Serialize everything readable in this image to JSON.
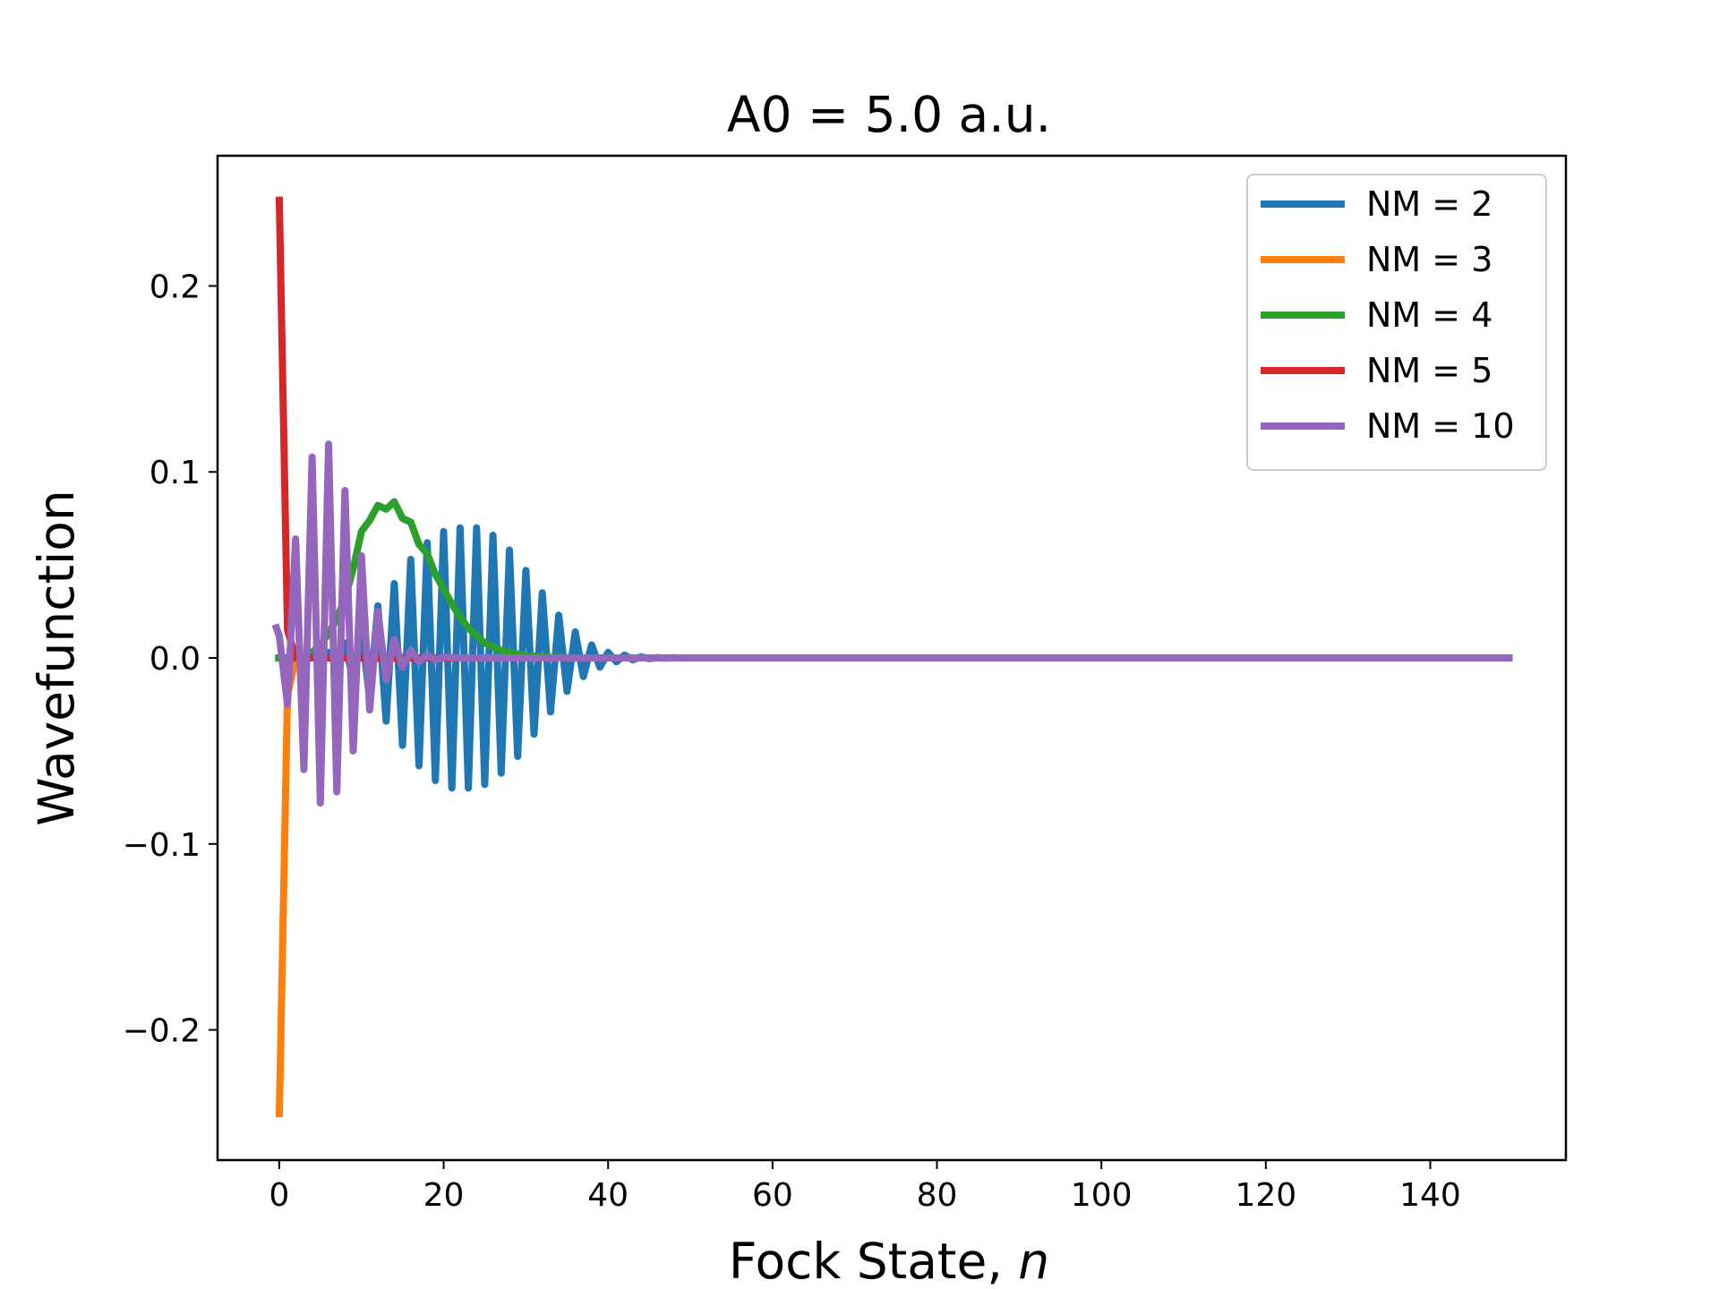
{
  "chart_data": {
    "type": "line",
    "title": "A0 = 5.0 a.u.",
    "xlabel": "Fock State, ",
    "xlabel_italic": "n",
    "ylabel": "Wavefunction",
    "xlim": [
      -7.5,
      156.5
    ],
    "ylim": [
      -0.27,
      0.27
    ],
    "xticks": [
      0,
      20,
      40,
      60,
      80,
      100,
      120,
      140
    ],
    "xtick_labels": [
      "0",
      "20",
      "40",
      "60",
      "80",
      "100",
      "120",
      "140"
    ],
    "yticks": [
      -0.2,
      -0.1,
      0.0,
      0.1,
      0.2
    ],
    "ytick_labels": [
      "−0.2",
      "−0.1",
      "0.0",
      "0.1",
      "0.2"
    ],
    "grid": false,
    "legend_position": "top-right",
    "series": [
      {
        "name": "NM = 2",
        "color": "#1f77b4",
        "x": [
          0,
          1,
          2,
          3,
          4,
          5,
          6,
          7,
          8,
          9,
          10,
          11,
          12,
          13,
          14,
          15,
          16,
          17,
          18,
          19,
          20,
          21,
          22,
          23,
          24,
          25,
          26,
          27,
          28,
          29,
          30,
          31,
          32,
          33,
          34,
          35,
          36,
          37,
          38,
          39,
          40,
          41,
          42,
          43,
          44,
          45,
          46,
          47,
          48,
          49,
          50,
          51,
          52,
          53,
          54,
          55,
          56,
          57,
          58,
          59,
          60,
          150
        ],
        "y": [
          0.0,
          0.0,
          0.0,
          0.0,
          0.0,
          0.0,
          0.003,
          -0.005,
          0.008,
          -0.012,
          0.016,
          -0.022,
          0.028,
          -0.034,
          0.04,
          -0.047,
          0.053,
          -0.058,
          0.062,
          -0.066,
          0.068,
          -0.07,
          0.07,
          -0.07,
          0.07,
          -0.068,
          0.066,
          -0.062,
          0.058,
          -0.053,
          0.047,
          -0.041,
          0.035,
          -0.029,
          0.023,
          -0.018,
          0.014,
          -0.01,
          0.007,
          -0.005,
          0.003,
          -0.002,
          0.0015,
          -0.001,
          0.0006,
          -0.0004,
          0.0002,
          -0.0001,
          0.0001,
          0.0,
          0.0,
          0.0,
          0.0,
          0.0,
          0.0,
          0.0,
          0.0,
          0.0,
          0.0,
          0.0,
          0.0,
          0.0
        ]
      },
      {
        "name": "NM = 3",
        "color": "#ff7f0e",
        "x": [
          0,
          1,
          2,
          150
        ],
        "y": [
          -0.247,
          -0.02,
          0.0,
          0.0
        ]
      },
      {
        "name": "NM = 4",
        "color": "#2ca02c",
        "x": [
          -0.5,
          0,
          1,
          2,
          3,
          4,
          5,
          6,
          7,
          8,
          9,
          10,
          11,
          12,
          13,
          14,
          15,
          16,
          17,
          18,
          19,
          20,
          21,
          22,
          23,
          24,
          25,
          26,
          27,
          28,
          29,
          30,
          31,
          32,
          34,
          36,
          38,
          40,
          150
        ],
        "y": [
          0.0,
          0.0,
          0.0,
          0.0,
          0.001,
          0.003,
          0.007,
          0.013,
          0.021,
          0.032,
          0.048,
          0.068,
          0.074,
          0.082,
          0.08,
          0.084,
          0.075,
          0.073,
          0.061,
          0.056,
          0.045,
          0.037,
          0.029,
          0.022,
          0.016,
          0.012,
          0.008,
          0.006,
          0.004,
          0.003,
          0.002,
          0.001,
          0.001,
          0.0005,
          0.0002,
          0.0,
          0.0,
          0.0,
          0.0
        ]
      },
      {
        "name": "NM = 5",
        "color": "#d62728",
        "x": [
          0,
          1,
          2,
          150
        ],
        "y": [
          0.248,
          0.015,
          0.0,
          0.0
        ]
      },
      {
        "name": "NM = 10",
        "color": "#9467bd",
        "x": [
          -0.5,
          0,
          1,
          2,
          3,
          4,
          5,
          6,
          7,
          8,
          9,
          10,
          11,
          12,
          13,
          14,
          15,
          16,
          17,
          18,
          19,
          20,
          22,
          150
        ],
        "y": [
          0.018,
          0.012,
          -0.025,
          0.064,
          -0.06,
          0.108,
          -0.078,
          0.115,
          -0.072,
          0.09,
          -0.05,
          0.055,
          -0.028,
          0.025,
          -0.012,
          0.01,
          -0.005,
          0.004,
          -0.002,
          0.0015,
          -0.001,
          0.0005,
          0.0,
          0.0
        ]
      }
    ]
  }
}
